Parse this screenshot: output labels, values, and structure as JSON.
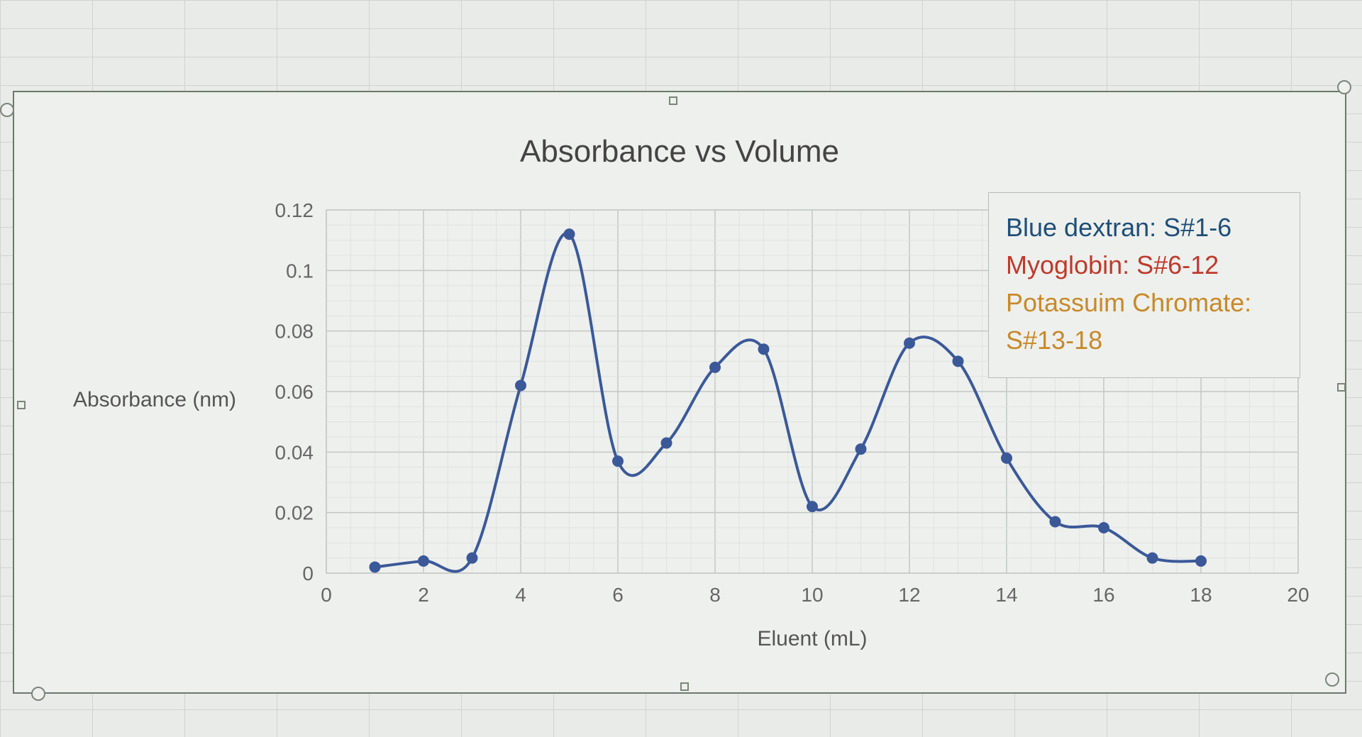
{
  "chart_data": {
    "type": "line",
    "title": "Absorbance vs Volume",
    "xlabel": "Eluent (mL)",
    "ylabel": "Absorbance (nm)",
    "xlim": [
      0,
      20
    ],
    "ylim": [
      0,
      0.12
    ],
    "x_ticks": [
      0,
      2,
      4,
      6,
      8,
      10,
      12,
      14,
      16,
      18,
      20
    ],
    "y_ticks": [
      0,
      0.02,
      0.04,
      0.06,
      0.08,
      0.1,
      0.12
    ],
    "x_tick_labels": [
      "0",
      "2",
      "4",
      "6",
      "8",
      "10",
      "12",
      "14",
      "16",
      "18",
      "20"
    ],
    "y_tick_labels": [
      "0",
      "0.02",
      "0.04",
      "0.06",
      "0.08",
      "0.1",
      "0.12"
    ],
    "grid": true,
    "smoothed": true,
    "series": [
      {
        "color": "#3b5999",
        "x": [
          1,
          2,
          3,
          4,
          5,
          6,
          7,
          8,
          9,
          10,
          11,
          12,
          13,
          14,
          15,
          16,
          17,
          18
        ],
        "y": [
          0.002,
          0.004,
          0.005,
          0.062,
          0.112,
          0.037,
          0.043,
          0.068,
          0.074,
          0.022,
          0.041,
          0.076,
          0.07,
          0.038,
          0.017,
          0.015,
          0.005,
          0.004
        ]
      }
    ],
    "legend": {
      "placement": "top-right",
      "lines": [
        {
          "text": "Blue dextran: S#1-6",
          "color": "#1f4e79"
        },
        {
          "text": "Myoglobin: S#6-12",
          "color": "#c0392b"
        },
        {
          "text": "Potassuim Chromate:",
          "color": "#c8892a"
        },
        {
          "text": "S#13-18",
          "color": "#c8892a"
        }
      ]
    }
  }
}
